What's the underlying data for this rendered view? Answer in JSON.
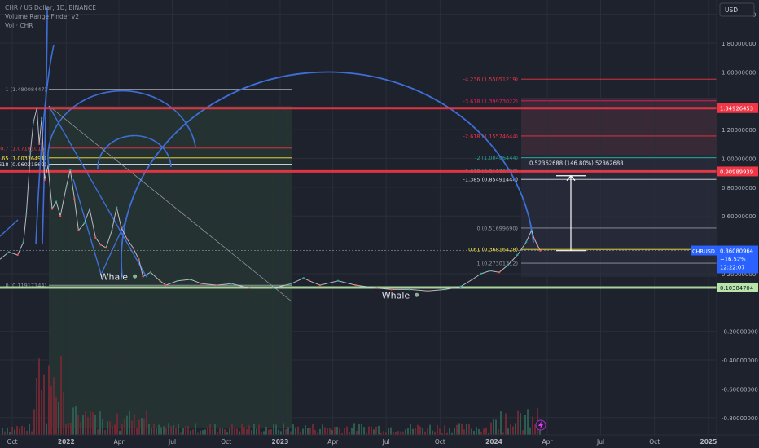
{
  "header": {
    "symbol_line": "CHR / US Dollar, 1D, BINANCE",
    "indicator_1": "Volume Range Finder v2",
    "indicator_2": "Vol · CHR"
  },
  "currency_label": "USD",
  "current_price": {
    "ticker": "CHRUSD",
    "price": "0.36080964",
    "change": "−16.52%",
    "countdown": "12:22:07",
    "value": 0.3608
  },
  "horizontal_levels": [
    {
      "label": "1.34926453",
      "value": 1.3493,
      "color": "#f23645"
    },
    {
      "label": "0.90989939",
      "value": 0.9099,
      "color": "#f23645"
    },
    {
      "label": "0.10384704",
      "value": 0.1038,
      "color": "#b7e4a8"
    }
  ],
  "fib_left": {
    "levels": [
      {
        "label": "1 (1.48008447)",
        "value": 1.4801,
        "color": "#9598a1"
      },
      {
        "label": "0.7 (1.07181016)",
        "value": 1.0718,
        "color": "#f23645"
      },
      {
        "label": "0.65 (1.00376491)",
        "value": 1.0038,
        "color": "#ffeb3b"
      },
      {
        "label": "0.618 (0.96021569)",
        "value": 0.9602,
        "color": "#e0e3eb"
      },
      {
        "label": "0 (0.11917144)",
        "value": 0.1192,
        "color": "#9598a1"
      }
    ]
  },
  "fib_right": {
    "levels": [
      {
        "label": "-4.236 (1.55051219)",
        "value": 1.5505,
        "color": "#f23645"
      },
      {
        "label": "-3.618 (1.39973022)",
        "value": 1.3997,
        "color": "#e91e63"
      },
      {
        "label": "-2.618 (1.15574644)",
        "value": 1.1557,
        "color": "#f23645"
      },
      {
        "label": "-2 (1.00496444)",
        "value": 1.005,
        "color": "#26a69a"
      },
      {
        "label": "-1.618 (0.91176766)",
        "value": 0.9118,
        "color": "#26a69a"
      },
      {
        "label": "-1.385 (0.85491444)",
        "value": 0.8549,
        "color": "#e0e3eb"
      },
      {
        "label": "0 (0.51699690)",
        "value": 0.517,
        "color": "#9598a1"
      },
      {
        "label": "0.61 (0.36816428)",
        "value": 0.3682,
        "color": "#ffeb3b"
      },
      {
        "label": "1 (0.27301312)",
        "value": 0.273,
        "color": "#9598a1"
      }
    ]
  },
  "measure": {
    "label": "0.52362688 (146.80%) 52362688",
    "from": 0.36,
    "to": 0.88
  },
  "annotations": [
    {
      "text": "Whale",
      "date": "2022-05-01",
      "value": 0.17
    },
    {
      "text": "Whale",
      "date": "2023-08-25",
      "value": 0.04
    }
  ],
  "chart_data": {
    "type": "line",
    "title": "CHR / US Dollar, 1D, BINANCE",
    "xlabel": "",
    "ylabel": "",
    "ylim": [
      -0.92,
      2.1
    ],
    "y_ticks": [
      {
        "label": "2.00000000",
        "value": 2.0
      },
      {
        "label": "1.80000000",
        "value": 1.8
      },
      {
        "label": "1.60000000",
        "value": 1.6
      },
      {
        "label": "1.20000000",
        "value": 1.2
      },
      {
        "label": "1.00000000",
        "value": 1.0
      },
      {
        "label": "0.80000000",
        "value": 0.8
      },
      {
        "label": "0.60000000",
        "value": 0.6
      },
      {
        "label": "0.20000000",
        "value": 0.2
      },
      {
        "label": "-0.20000000",
        "value": -0.2
      },
      {
        "label": "-0.40000000",
        "value": -0.4
      },
      {
        "label": "-0.60000000",
        "value": -0.6
      },
      {
        "label": "-0.80000000",
        "value": -0.8
      }
    ],
    "x_range": [
      "2021-09-10",
      "2025-01-15"
    ],
    "x_ticks": [
      {
        "label": "Oct",
        "date": "2021-10-01"
      },
      {
        "label": "2022",
        "date": "2022-01-01"
      },
      {
        "label": "Apr",
        "date": "2022-04-01"
      },
      {
        "label": "Jul",
        "date": "2022-07-01"
      },
      {
        "label": "Oct",
        "date": "2022-10-01"
      },
      {
        "label": "2023",
        "date": "2023-01-01"
      },
      {
        "label": "Apr",
        "date": "2023-04-01"
      },
      {
        "label": "Jul",
        "date": "2023-07-01"
      },
      {
        "label": "Oct",
        "date": "2023-10-01"
      },
      {
        "label": "2024",
        "date": "2024-01-01"
      },
      {
        "label": "Apr",
        "date": "2024-04-01"
      },
      {
        "label": "Jul",
        "date": "2024-07-01"
      },
      {
        "label": "Oct",
        "date": "2024-10-01"
      },
      {
        "label": "2025",
        "date": "2025-01-01"
      }
    ],
    "series": [
      {
        "values": [
          [
            "2021-09-10",
            0.3
          ],
          [
            "2021-09-25",
            0.35
          ],
          [
            "2021-10-10",
            0.33
          ],
          [
            "2021-10-20",
            0.42
          ],
          [
            "2021-10-25",
            0.62
          ],
          [
            "2021-11-01",
            1.05
          ],
          [
            "2021-11-06",
            1.25
          ],
          [
            "2021-11-12",
            1.35
          ],
          [
            "2021-11-16",
            1.1
          ],
          [
            "2021-11-20",
            1.28
          ],
          [
            "2021-11-25",
            0.85
          ],
          [
            "2021-12-01",
            0.95
          ],
          [
            "2021-12-08",
            0.65
          ],
          [
            "2021-12-15",
            0.7
          ],
          [
            "2021-12-22",
            0.6
          ],
          [
            "2022-01-01",
            0.8
          ],
          [
            "2022-01-08",
            0.92
          ],
          [
            "2022-01-15",
            0.72
          ],
          [
            "2022-01-22",
            0.5
          ],
          [
            "2022-02-01",
            0.55
          ],
          [
            "2022-02-10",
            0.65
          ],
          [
            "2022-02-20",
            0.45
          ],
          [
            "2022-03-01",
            0.4
          ],
          [
            "2022-03-10",
            0.38
          ],
          [
            "2022-03-20",
            0.5
          ],
          [
            "2022-03-28",
            0.66
          ],
          [
            "2022-04-05",
            0.52
          ],
          [
            "2022-04-15",
            0.44
          ],
          [
            "2022-04-25",
            0.38
          ],
          [
            "2022-05-05",
            0.3
          ],
          [
            "2022-05-12",
            0.18
          ],
          [
            "2022-05-25",
            0.21
          ],
          [
            "2022-06-10",
            0.15
          ],
          [
            "2022-06-20",
            0.12
          ],
          [
            "2022-07-10",
            0.15
          ],
          [
            "2022-08-01",
            0.16
          ],
          [
            "2022-08-20",
            0.13
          ],
          [
            "2022-09-15",
            0.12
          ],
          [
            "2022-10-10",
            0.13
          ],
          [
            "2022-11-10",
            0.1
          ],
          [
            "2022-12-20",
            0.1
          ],
          [
            "2023-01-20",
            0.13
          ],
          [
            "2023-02-10",
            0.17
          ],
          [
            "2023-02-20",
            0.15
          ],
          [
            "2023-03-10",
            0.12
          ],
          [
            "2023-04-10",
            0.15
          ],
          [
            "2023-05-10",
            0.12
          ],
          [
            "2023-06-15",
            0.1
          ],
          [
            "2023-07-10",
            0.09
          ],
          [
            "2023-08-10",
            0.09
          ],
          [
            "2023-09-10",
            0.08
          ],
          [
            "2023-10-10",
            0.09
          ],
          [
            "2023-11-05",
            0.11
          ],
          [
            "2023-11-25",
            0.16
          ],
          [
            "2023-12-10",
            0.2
          ],
          [
            "2023-12-25",
            0.22
          ],
          [
            "2024-01-10",
            0.21
          ],
          [
            "2024-01-25",
            0.26
          ],
          [
            "2024-02-10",
            0.33
          ],
          [
            "2024-02-25",
            0.42
          ],
          [
            "2024-03-05",
            0.5
          ],
          [
            "2024-03-10",
            0.44
          ],
          [
            "2024-03-15",
            0.4
          ],
          [
            "2024-03-20",
            0.36
          ]
        ]
      }
    ]
  }
}
